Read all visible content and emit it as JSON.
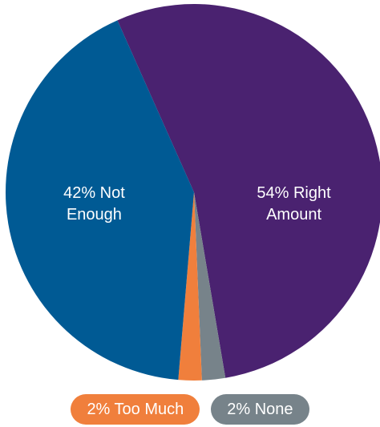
{
  "chart_data": {
    "type": "pie",
    "categories": [
      "Right Amount",
      "None",
      "Too Much",
      "Not Enough"
    ],
    "values": [
      54,
      2,
      2,
      42
    ],
    "value_labels": [
      "54%",
      "2%",
      "2%",
      "42%"
    ],
    "colors": [
      "#4a2270",
      "#77838a",
      "#f07f3c",
      "#005a94"
    ],
    "start_angle": -24
  }
}
